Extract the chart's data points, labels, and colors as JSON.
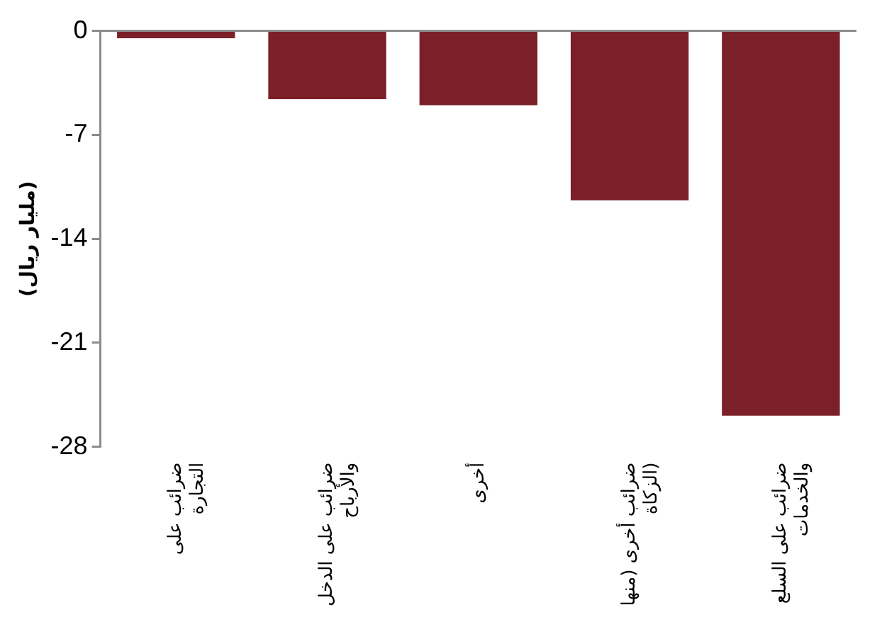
{
  "chart_data": {
    "type": "bar",
    "ylabel": "(مليار ريال)",
    "categories": [
      "ضرائب على التجارة",
      "ضرائب على الدخل والأرباح",
      "أخرى",
      "ضرائب أخرى (منها الزكاة)",
      "ضرائب على السلع والخدمات"
    ],
    "values": [
      -0.5,
      -4.6,
      -5.0,
      -11.4,
      -25.9
    ],
    "color": "#7b2028",
    "ylim": [
      -28,
      0
    ],
    "yticks": [
      0,
      -7,
      -14,
      -21,
      -28
    ]
  }
}
